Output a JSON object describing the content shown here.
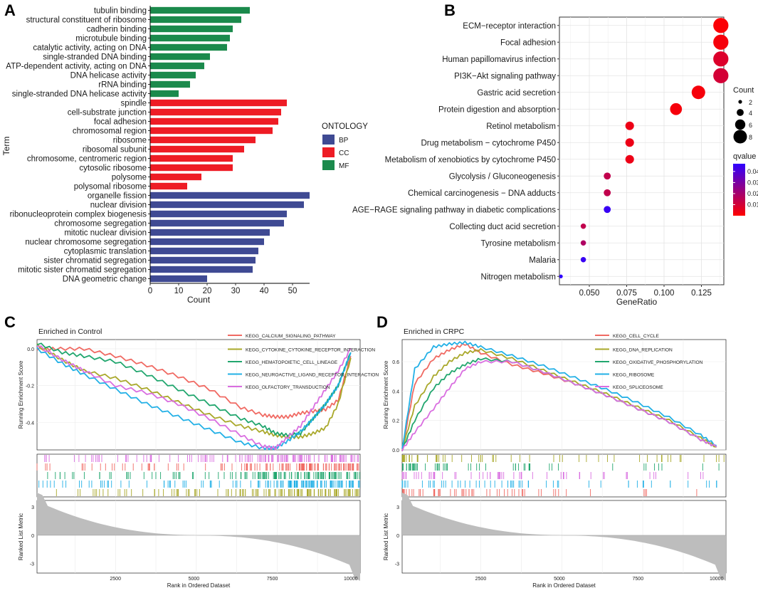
{
  "panel_labels": [
    "A",
    "B",
    "C",
    "D"
  ],
  "chart_data": [
    {
      "id": "A",
      "type": "bar",
      "orientation": "horizontal",
      "xlabel": "Count",
      "ylabel": "Term",
      "xlim": [
        0,
        56
      ],
      "xticks": [
        0,
        10,
        20,
        30,
        40,
        50
      ],
      "legend": {
        "title": "ONTOLOGY",
        "position": "right",
        "entries": [
          {
            "name": "BP",
            "color": "#3f4a93"
          },
          {
            "name": "CC",
            "color": "#ee1c25"
          },
          {
            "name": "MF",
            "color": "#1b8a4c"
          }
        ]
      },
      "bars": [
        {
          "term": "tubulin binding",
          "value": 35,
          "group": "MF"
        },
        {
          "term": "structural constituent of ribosome",
          "value": 32,
          "group": "MF"
        },
        {
          "term": "cadherin binding",
          "value": 29,
          "group": "MF"
        },
        {
          "term": "microtubule binding",
          "value": 28,
          "group": "MF"
        },
        {
          "term": "catalytic activity, acting on DNA",
          "value": 27,
          "group": "MF"
        },
        {
          "term": "single-stranded DNA binding",
          "value": 21,
          "group": "MF"
        },
        {
          "term": "ATP-dependent activity, acting on DNA",
          "value": 19,
          "group": "MF"
        },
        {
          "term": "DNA helicase activity",
          "value": 16,
          "group": "MF"
        },
        {
          "term": "rRNA binding",
          "value": 14,
          "group": "MF"
        },
        {
          "term": "single-stranded DNA helicase activity",
          "value": 10,
          "group": "MF"
        },
        {
          "term": "spindle",
          "value": 48,
          "group": "CC"
        },
        {
          "term": "cell-substrate junction",
          "value": 46,
          "group": "CC"
        },
        {
          "term": "focal adhesion",
          "value": 45,
          "group": "CC"
        },
        {
          "term": "chromosomal region",
          "value": 43,
          "group": "CC"
        },
        {
          "term": "ribosome",
          "value": 37,
          "group": "CC"
        },
        {
          "term": "ribosomal subunit",
          "value": 33,
          "group": "CC"
        },
        {
          "term": "chromosome, centromeric region",
          "value": 29,
          "group": "CC"
        },
        {
          "term": "cytosolic ribosome",
          "value": 29,
          "group": "CC"
        },
        {
          "term": "polysome",
          "value": 18,
          "group": "CC"
        },
        {
          "term": "polysomal ribosome",
          "value": 13,
          "group": "CC"
        },
        {
          "term": "organelle fission",
          "value": 56,
          "group": "BP"
        },
        {
          "term": "nuclear division",
          "value": 54,
          "group": "BP"
        },
        {
          "term": "ribonucleoprotein complex biogenesis",
          "value": 48,
          "group": "BP"
        },
        {
          "term": "chromosome segregation",
          "value": 47,
          "group": "BP"
        },
        {
          "term": "mitotic nuclear division",
          "value": 42,
          "group": "BP"
        },
        {
          "term": "nuclear chromosome segregation",
          "value": 40,
          "group": "BP"
        },
        {
          "term": "cytoplasmic translation",
          "value": 38,
          "group": "BP"
        },
        {
          "term": "sister chromatid segregation",
          "value": 37,
          "group": "BP"
        },
        {
          "term": "mitotic sister chromatid segregation",
          "value": 36,
          "group": "BP"
        },
        {
          "term": "DNA geometric change",
          "value": 20,
          "group": "BP"
        }
      ]
    },
    {
      "id": "B",
      "type": "scatter",
      "subtype": "dot-plot",
      "xlabel": "GeneRatio",
      "xlim": [
        0.03,
        0.14
      ],
      "xticks": [
        0.05,
        0.075,
        0.1,
        0.125
      ],
      "xtick_labels": [
        "0.050",
        "0.075",
        "0.100",
        "0.125"
      ],
      "size_legend": {
        "title": "Count",
        "values": [
          2,
          4,
          6,
          8
        ]
      },
      "color_legend": {
        "title": "qvalue",
        "ticks": [
          0.04,
          0.03,
          0.02,
          0.01
        ],
        "range": [
          0.0,
          0.047
        ],
        "low_color": "#ff0000",
        "high_color": "#2f00ff"
      },
      "points": [
        {
          "term": "ECM−receptor interaction",
          "gene_ratio": 0.138,
          "count": 9,
          "qvalue": 0.001
        },
        {
          "term": "Focal adhesion",
          "gene_ratio": 0.138,
          "count": 9,
          "qvalue": 0.002
        },
        {
          "term": "Human papillomavirus infection",
          "gene_ratio": 0.138,
          "count": 9,
          "qvalue": 0.008
        },
        {
          "term": "PI3K−Akt signaling pathway",
          "gene_ratio": 0.138,
          "count": 9,
          "qvalue": 0.01
        },
        {
          "term": "Gastric acid secretion",
          "gene_ratio": 0.123,
          "count": 8,
          "qvalue": 0.002
        },
        {
          "term": "Protein digestion and absorption",
          "gene_ratio": 0.108,
          "count": 7,
          "qvalue": 0.002
        },
        {
          "term": "Retinol metabolism",
          "gene_ratio": 0.077,
          "count": 5,
          "qvalue": 0.004
        },
        {
          "term": "Drug metabolism − cytochrome P450",
          "gene_ratio": 0.077,
          "count": 5,
          "qvalue": 0.004
        },
        {
          "term": "Metabolism of xenobiotics by cytochrome P450",
          "gene_ratio": 0.077,
          "count": 5,
          "qvalue": 0.004
        },
        {
          "term": "Glycolysis / Gluconeogenesis",
          "gene_ratio": 0.062,
          "count": 4,
          "qvalue": 0.014
        },
        {
          "term": "Chemical carcinogenesis − DNA adducts",
          "gene_ratio": 0.062,
          "count": 4,
          "qvalue": 0.014
        },
        {
          "term": "AGE−RAGE signaling pathway in diabetic complications",
          "gene_ratio": 0.062,
          "count": 4,
          "qvalue": 0.045
        },
        {
          "term": "Collecting duct acid secretion",
          "gene_ratio": 0.046,
          "count": 3,
          "qvalue": 0.014
        },
        {
          "term": "Tyrosine metabolism",
          "gene_ratio": 0.046,
          "count": 3,
          "qvalue": 0.018
        },
        {
          "term": "Malaria",
          "gene_ratio": 0.046,
          "count": 3,
          "qvalue": 0.045
        },
        {
          "term": "Nitrogen metabolism",
          "gene_ratio": 0.031,
          "count": 2,
          "qvalue": 0.047
        }
      ]
    },
    {
      "id": "C",
      "type": "line",
      "subtype": "gsea",
      "title": "Enriched in Control",
      "ylabel": "Running Enrichment Score",
      "ylim": [
        -0.55,
        0.05
      ],
      "yticks": [
        0.0,
        -0.2,
        -0.4
      ],
      "yticklabels": [
        "0.0",
        "-0.2",
        "-0.4"
      ],
      "xlabel": "Rank in Ordered Dataset",
      "xlim": [
        0,
        10300
      ],
      "xticks": [
        2500,
        5000,
        7500,
        10000
      ],
      "metric_ylabel": "Ranked List Metric",
      "metric_yticks": [
        3,
        0,
        -3
      ],
      "series": [
        {
          "name": "KEGG_CALCIUM_SIGNALING_PATHWAY",
          "color": "#f06a63",
          "x": [
            0,
            600,
            1500,
            2500,
            3500,
            4500,
            5500,
            6500,
            7200,
            7600,
            8000,
            8400,
            8800,
            9200,
            9600,
            10000
          ],
          "y": [
            0.0,
            0.0,
            0.0,
            -0.04,
            -0.09,
            -0.15,
            -0.22,
            -0.32,
            -0.36,
            -0.37,
            -0.37,
            -0.35,
            -0.34,
            -0.33,
            -0.28,
            -0.04
          ]
        },
        {
          "name": "KEGG_CYTOKINE_CYTOKINE_RECEPTOR_INTERACTION",
          "color": "#a9a82a",
          "x": [
            0,
            800,
            1500,
            2500,
            3500,
            4500,
            5500,
            6500,
            7200,
            7600,
            8000,
            8400,
            8800,
            9200,
            9600,
            10000
          ],
          "y": [
            0.02,
            -0.06,
            -0.12,
            -0.16,
            -0.22,
            -0.29,
            -0.36,
            -0.42,
            -0.45,
            -0.47,
            -0.48,
            -0.48,
            -0.46,
            -0.43,
            -0.3,
            -0.05
          ]
        },
        {
          "name": "KEGG_HEMATOPOIETIC_CELL_LINEAGE",
          "color": "#21a66e",
          "x": [
            0,
            800,
            1500,
            2500,
            3500,
            4500,
            5500,
            6500,
            7200,
            7600,
            8000,
            8400,
            8800,
            9200,
            9600,
            10000
          ],
          "y": [
            0.03,
            -0.02,
            -0.04,
            -0.07,
            -0.14,
            -0.22,
            -0.3,
            -0.38,
            -0.42,
            -0.46,
            -0.47,
            -0.46,
            -0.38,
            -0.3,
            -0.2,
            -0.02
          ]
        },
        {
          "name": "KEGG_NEUROACTIVE_LIGAND_RECEPTOR_INTERACTION",
          "color": "#22b0e6",
          "x": [
            0,
            800,
            1500,
            2500,
            3500,
            4500,
            5500,
            6500,
            7200,
            7600,
            8000,
            8400,
            8800,
            9200,
            9600,
            10000
          ],
          "y": [
            0.0,
            -0.08,
            -0.14,
            -0.22,
            -0.3,
            -0.37,
            -0.44,
            -0.51,
            -0.54,
            -0.54,
            -0.5,
            -0.45,
            -0.38,
            -0.3,
            -0.2,
            -0.02
          ]
        },
        {
          "name": "KEGG_OLFACTORY_TRANSDUCTION",
          "color": "#d96ee0",
          "x": [
            0,
            800,
            1500,
            2500,
            3500,
            4500,
            5500,
            6500,
            7200,
            7600,
            8000,
            8400,
            8800,
            9200,
            9600,
            10000
          ],
          "y": [
            0.02,
            -0.06,
            -0.12,
            -0.2,
            -0.24,
            -0.3,
            -0.38,
            -0.47,
            -0.53,
            -0.54,
            -0.48,
            -0.42,
            -0.32,
            -0.22,
            -0.12,
            0.0
          ]
        }
      ]
    },
    {
      "id": "D",
      "type": "line",
      "subtype": "gsea",
      "title": "Enriched in CRPC",
      "ylabel": "Running Enrichment Score",
      "ylim": [
        0.0,
        0.75
      ],
      "yticks": [
        0.0,
        0.2,
        0.4,
        0.6
      ],
      "yticklabels": [
        "0.0",
        "0.2",
        "0.4",
        "0.6"
      ],
      "xlabel": "Rank in Ordered Dataset",
      "xlim": [
        0,
        10300
      ],
      "xticks": [
        2500,
        5000,
        7500,
        10000
      ],
      "metric_ylabel": "Ranked List Metric",
      "metric_yticks": [
        3,
        0,
        -3
      ],
      "series": [
        {
          "name": "KEGG_CELL_CYCLE",
          "color": "#f06a63",
          "x": [
            0,
            400,
            1000,
            1500,
            2000,
            2500,
            3500,
            4500,
            5500,
            6500,
            7500,
            8500,
            9500,
            10000
          ],
          "y": [
            0.0,
            0.45,
            0.62,
            0.68,
            0.72,
            0.66,
            0.58,
            0.52,
            0.45,
            0.37,
            0.28,
            0.19,
            0.07,
            0.02
          ]
        },
        {
          "name": "KEGG_DNA_REPLICATION",
          "color": "#a9a82a",
          "x": [
            0,
            400,
            1000,
            1500,
            2000,
            2500,
            3500,
            4500,
            5500,
            6500,
            7500,
            8500,
            9500,
            10000
          ],
          "y": [
            0.0,
            0.3,
            0.5,
            0.6,
            0.66,
            0.68,
            0.62,
            0.54,
            0.46,
            0.38,
            0.29,
            0.2,
            0.08,
            0.02
          ]
        },
        {
          "name": "KEGG_OXIDATIVE_PHOSPHORYLATION",
          "color": "#21a66e",
          "x": [
            0,
            400,
            1000,
            1500,
            2000,
            2500,
            3500,
            4500,
            5500,
            6500,
            7500,
            8500,
            9500,
            10000
          ],
          "y": [
            0.0,
            0.2,
            0.42,
            0.52,
            0.58,
            0.62,
            0.6,
            0.53,
            0.45,
            0.37,
            0.28,
            0.19,
            0.07,
            0.02
          ]
        },
        {
          "name": "KEGG_RIBOSOME",
          "color": "#22b0e6",
          "x": [
            0,
            400,
            1000,
            1500,
            2000,
            2500,
            3500,
            4500,
            5500,
            6500,
            7500,
            8500,
            9500,
            10000
          ],
          "y": [
            0.0,
            0.55,
            0.7,
            0.72,
            0.73,
            0.7,
            0.64,
            0.57,
            0.49,
            0.41,
            0.32,
            0.22,
            0.1,
            0.03
          ]
        },
        {
          "name": "KEGG_SPLICEOSOME",
          "color": "#d96ee0",
          "x": [
            0,
            400,
            1000,
            1500,
            2000,
            2500,
            3500,
            4500,
            5500,
            6500,
            7500,
            8500,
            9500,
            10000
          ],
          "y": [
            0.0,
            0.12,
            0.28,
            0.42,
            0.55,
            0.6,
            0.6,
            0.53,
            0.45,
            0.37,
            0.28,
            0.19,
            0.07,
            0.02
          ]
        }
      ]
    }
  ]
}
